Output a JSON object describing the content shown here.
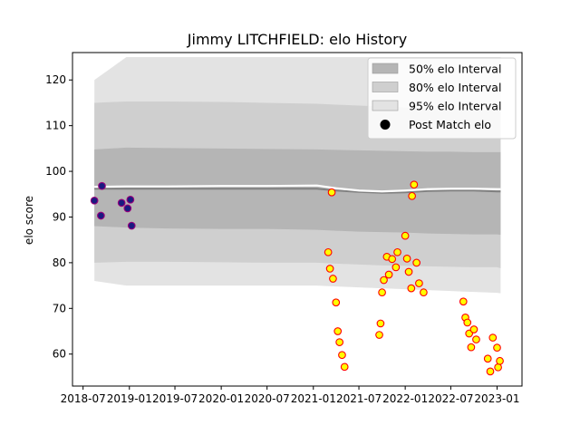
{
  "chart_data": {
    "type": "line",
    "title": "Jimmy LITCHFIELD: elo History",
    "xlabel": "",
    "ylabel": "elo score",
    "xlim": [
      "2018-05-20",
      "2023-04-10"
    ],
    "ylim": [
      53,
      126
    ],
    "xticks": [
      "2018-07",
      "2019-01",
      "2019-07",
      "2020-01",
      "2020-07",
      "2021-01",
      "2021-07",
      "2022-01",
      "2022-07",
      "2023-01"
    ],
    "yticks": [
      60,
      70,
      80,
      90,
      100,
      110,
      120
    ],
    "grid": false,
    "legend_position": "top-right",
    "colors": {
      "band95": "#e3e3e3",
      "band80": "#cfcfcf",
      "band50": "#b5b5b5",
      "mean": "#ffffff",
      "median": "#808080",
      "pre_marker_fill": "#1a1a80",
      "pre_marker_edge": "#9a007a",
      "post_marker_fill": "#ffff00",
      "post_marker_edge": "#ff0000"
    },
    "legend": [
      {
        "key": "band50",
        "label": "50% elo Interval"
      },
      {
        "key": "band80",
        "label": "80% elo Interval"
      },
      {
        "key": "band95",
        "label": "95% elo Interval"
      },
      {
        "key": "post",
        "label": "Post Match elo"
      }
    ],
    "intervals": {
      "x": [
        "2018-08-15",
        "2018-12-20",
        "2019-06-01",
        "2020-01-01",
        "2020-07-01",
        "2021-01-15",
        "2021-04-01",
        "2021-07-01",
        "2021-10-01",
        "2022-01-01",
        "2022-04-01",
        "2022-07-01",
        "2022-10-01",
        "2023-01-01",
        "2023-01-15"
      ],
      "band95": {
        "lower": [
          76,
          75,
          75,
          75,
          75,
          75,
          74.8,
          74.6,
          74.4,
          74.2,
          74,
          73.8,
          73.6,
          73.4,
          73.3
        ],
        "upper": [
          120,
          125,
          125,
          125,
          125,
          125,
          125,
          125,
          125,
          125,
          125,
          125,
          125,
          125,
          125
        ]
      },
      "band80": {
        "lower": [
          80,
          80.2,
          80.2,
          80.1,
          80,
          80,
          79.8,
          79.6,
          79.4,
          79.3,
          79.2,
          79.1,
          79,
          79,
          78.8
        ]
      },
      "band50": {
        "lower": [
          88,
          87.7,
          87.5,
          87.4,
          87.4,
          87.2,
          87,
          86.8,
          86.7,
          86.6,
          86.4,
          86.3,
          86.2,
          86.2,
          86.1
        ]
      },
      "band80_upper": [
        115,
        115.3,
        115.3,
        115.2,
        115,
        114.8,
        114.6,
        114.4,
        114.2,
        114,
        113.8,
        113.6,
        113.4,
        113.3,
        113.2
      ],
      "band50_upper": [
        104.8,
        105.2,
        105.1,
        105,
        104.9,
        104.8,
        104.7,
        104.6,
        104.5,
        104.4,
        104.3,
        104.3,
        104.2,
        104.2,
        104.2
      ],
      "mean": [
        96.6,
        96.7,
        96.7,
        96.8,
        96.8,
        96.9,
        96.3,
        95.8,
        95.6,
        95.8,
        96.1,
        96.2,
        96.2,
        96.1,
        96.1
      ],
      "median": [
        96.2,
        96.2,
        96.2,
        96.2,
        96.2,
        96.2,
        95.8,
        95.5,
        95.3,
        95.4,
        95.7,
        95.8,
        95.8,
        95.6,
        95.6
      ]
    },
    "pre_match": [
      {
        "x": "2018-08-15",
        "y": 93.6
      },
      {
        "x": "2018-09-10",
        "y": 90.3
      },
      {
        "x": "2018-09-14",
        "y": 96.8
      },
      {
        "x": "2018-12-01",
        "y": 93.1
      },
      {
        "x": "2018-12-25",
        "y": 91.9
      },
      {
        "x": "2019-01-05",
        "y": 93.8
      },
      {
        "x": "2019-01-10",
        "y": 88.1
      }
    ],
    "post_match": [
      {
        "x": "2021-03-01",
        "y": 82.3
      },
      {
        "x": "2021-03-08",
        "y": 78.7
      },
      {
        "x": "2021-03-15",
        "y": 95.4
      },
      {
        "x": "2021-03-20",
        "y": 76.5
      },
      {
        "x": "2021-04-01",
        "y": 71.3
      },
      {
        "x": "2021-04-08",
        "y": 65.0
      },
      {
        "x": "2021-04-15",
        "y": 62.6
      },
      {
        "x": "2021-04-25",
        "y": 59.8
      },
      {
        "x": "2021-05-05",
        "y": 57.2
      },
      {
        "x": "2021-09-20",
        "y": 64.2
      },
      {
        "x": "2021-09-25",
        "y": 66.7
      },
      {
        "x": "2021-10-01",
        "y": 73.5
      },
      {
        "x": "2021-10-08",
        "y": 76.2
      },
      {
        "x": "2021-10-20",
        "y": 81.3
      },
      {
        "x": "2021-10-28",
        "y": 77.4
      },
      {
        "x": "2021-11-10",
        "y": 80.8
      },
      {
        "x": "2021-11-25",
        "y": 79.0
      },
      {
        "x": "2021-12-01",
        "y": 82.3
      },
      {
        "x": "2022-01-01",
        "y": 85.9
      },
      {
        "x": "2022-01-08",
        "y": 80.9
      },
      {
        "x": "2022-01-15",
        "y": 78.0
      },
      {
        "x": "2022-01-25",
        "y": 74.4
      },
      {
        "x": "2022-01-28",
        "y": 94.6
      },
      {
        "x": "2022-02-05",
        "y": 97.1
      },
      {
        "x": "2022-02-15",
        "y": 80.0
      },
      {
        "x": "2022-02-25",
        "y": 75.5
      },
      {
        "x": "2022-03-15",
        "y": 73.5
      },
      {
        "x": "2022-08-20",
        "y": 71.5
      },
      {
        "x": "2022-08-28",
        "y": 68.0
      },
      {
        "x": "2022-09-05",
        "y": 66.9
      },
      {
        "x": "2022-09-12",
        "y": 64.5
      },
      {
        "x": "2022-09-20",
        "y": 61.5
      },
      {
        "x": "2022-10-01",
        "y": 65.4
      },
      {
        "x": "2022-10-10",
        "y": 63.2
      },
      {
        "x": "2022-11-25",
        "y": 59.0
      },
      {
        "x": "2022-12-05",
        "y": 56.2
      },
      {
        "x": "2022-12-15",
        "y": 63.6
      },
      {
        "x": "2023-01-01",
        "y": 61.4
      },
      {
        "x": "2023-01-05",
        "y": 57.1
      },
      {
        "x": "2023-01-12",
        "y": 58.5
      }
    ]
  }
}
